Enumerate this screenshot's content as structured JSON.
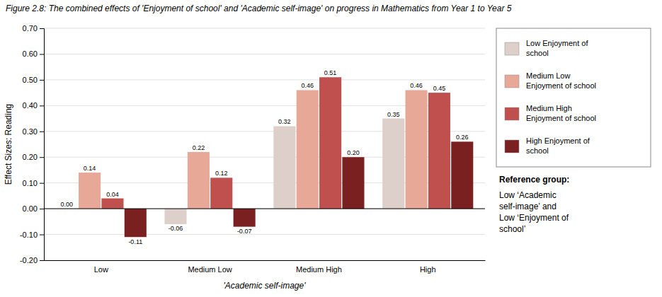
{
  "chart_data": {
    "type": "bar",
    "title": "Figure 2.8: The combined effects of 'Enjoyment of school' and 'Academic self-image' on progress in Mathematics from Year 1 to Year 5",
    "xlabel": "'Academic self-image'",
    "ylabel": "Effect Sizes: Reading",
    "categories": [
      "Low",
      "Medium Low",
      "Medium High",
      "High"
    ],
    "series": [
      {
        "name": "Low Enjoyment of\nschool",
        "color": "#ddd0ca",
        "values": [
          0.0,
          -0.06,
          0.32,
          0.35
        ],
        "value_labels": [
          "0.00",
          "-0.06",
          "0.32",
          "0.35"
        ]
      },
      {
        "name": "Medium Low\nEnjoyment of school",
        "color": "#e8a898",
        "values": [
          0.14,
          0.22,
          0.46,
          0.46
        ],
        "value_labels": [
          "0.14",
          "0.22",
          "0.46",
          "0.46"
        ]
      },
      {
        "name": "Medium High\nEnjoyment of school",
        "color": "#c0504d",
        "values": [
          0.04,
          0.12,
          0.51,
          0.45
        ],
        "value_labels": [
          "0.04",
          "0.12",
          "0.51",
          "0.45"
        ]
      },
      {
        "name": "High Enjoyment of\nschool",
        "color": "#7b2020",
        "values": [
          -0.11,
          -0.07,
          0.2,
          0.26
        ],
        "value_labels": [
          "-0.11",
          "-0.07",
          "0.20",
          "0.26"
        ]
      }
    ],
    "ylim": [
      -0.2,
      0.7
    ],
    "yticks": [
      {
        "value": -0.2,
        "label": "-0.20"
      },
      {
        "value": -0.1,
        "label": "-0.10"
      },
      {
        "value": 0.0,
        "label": "0.00"
      },
      {
        "value": 0.1,
        "label": "0.10"
      },
      {
        "value": 0.2,
        "label": "0.20"
      },
      {
        "value": 0.3,
        "label": "0.30"
      },
      {
        "value": 0.4,
        "label": "0.40"
      },
      {
        "value": 0.5,
        "label": "0.50"
      },
      {
        "value": 0.6,
        "label": "0.60"
      },
      {
        "value": 0.7,
        "label": "0.70"
      }
    ],
    "grid": true,
    "legend": "right",
    "data_labels": true,
    "annotations": [
      "Reference group:",
      "Low ‘Academic\nself-image’ and\nLow ‘Enjoyment of\nschool’"
    ]
  }
}
